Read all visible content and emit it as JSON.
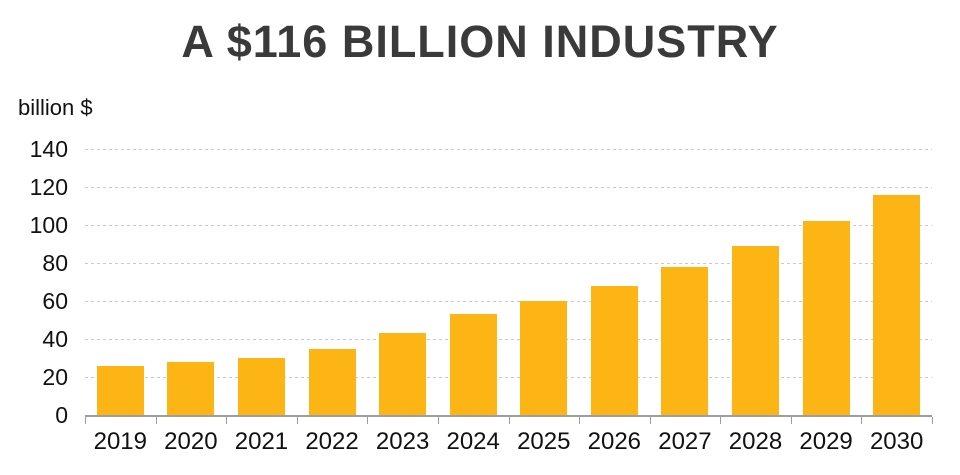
{
  "title": "A $116 BILLION INDUSTRY",
  "chart_data": {
    "type": "bar",
    "title": "A $116 BILLION INDUSTRY",
    "unit_label": "billion $",
    "categories": [
      "2019",
      "2020",
      "2021",
      "2022",
      "2023",
      "2024",
      "2025",
      "2026",
      "2027",
      "2028",
      "2029",
      "2030"
    ],
    "values": [
      26,
      28,
      30,
      35,
      43,
      53,
      60,
      68,
      78,
      89,
      102,
      116
    ],
    "xlabel": "",
    "ylabel": "billion $",
    "ylim": [
      0,
      140
    ],
    "yticks": [
      0,
      20,
      40,
      60,
      80,
      100,
      120,
      140
    ],
    "grid": "horizontal-dashed",
    "legend": "none"
  },
  "colors": {
    "background": "#ffffff",
    "bar": "#FCB514",
    "title": "#3A3A3A",
    "tick_label": "#111111",
    "gridline": "#C9C9C9",
    "axis_line": "#9E9E9E"
  }
}
